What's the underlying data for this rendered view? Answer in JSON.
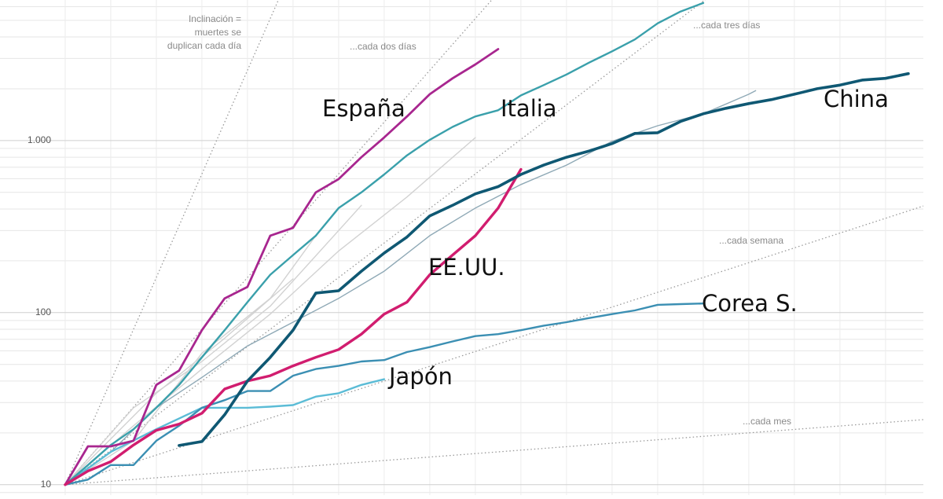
{
  "chart_data": {
    "type": "line",
    "log_y": true,
    "grid": true,
    "xlim": [
      -2.86,
      37.66
    ],
    "ylim": [
      8.7,
      6560
    ],
    "xticks": [
      0,
      2,
      4,
      6,
      8,
      10,
      12,
      14,
      16,
      18,
      20,
      22,
      24,
      26,
      28,
      30,
      32,
      34,
      36
    ],
    "yticks": [
      10,
      100,
      {
        "value": 1000,
        "label": "1.000"
      }
    ],
    "reference_lines": [
      {
        "label": [
          "Inclinación =",
          "muertes se",
          "duplican cada día"
        ],
        "doubling_days": 1
      },
      {
        "label": "...cada dos días",
        "doubling_days": 2
      },
      {
        "label": "...cada tres días",
        "doubling_days": 3
      },
      {
        "label": "...cada semana",
        "doubling_days": 7
      },
      {
        "label": "...cada mes",
        "doubling_days": 30
      }
    ],
    "series": [
      {
        "color": "#d2d2d2",
        "x": [
          0,
          3,
          6,
          9,
          12,
          15,
          18
        ],
        "values": [
          10,
          22,
          47,
          98,
          228,
          470,
          1040
        ]
      },
      {
        "color": "#d2d2d2",
        "x": [
          0,
          3,
          6,
          9,
          13
        ],
        "values": [
          10,
          28,
          52,
          109,
          420
        ]
      },
      {
        "color": "#d2d2d2",
        "x": [
          0,
          3,
          6,
          9,
          11
        ],
        "values": [
          10,
          18,
          58,
          121,
          280
        ]
      },
      {
        "color": "#d2d2d2",
        "x": [
          0,
          4,
          7,
          10
        ],
        "values": [
          10,
          34,
          71,
          157
        ]
      },
      {
        "color": "#8fa9b6",
        "x": [
          0,
          2,
          4,
          6,
          8,
          10,
          12,
          14,
          16,
          18,
          20,
          22,
          24,
          26,
          28,
          30,
          30.3
        ],
        "values": [
          10,
          15.5,
          28,
          42,
          64,
          88,
          121,
          174,
          280,
          405,
          555,
          720,
          990,
          1220,
          1430,
          1860,
          1950
        ]
      },
      {
        "name": "Japón",
        "color": "#5bbcd6",
        "x": [
          0,
          2,
          4,
          6,
          7,
          8,
          9,
          10,
          11,
          12,
          13,
          14
        ],
        "values": [
          10,
          15.5,
          21,
          28,
          28,
          28,
          28.4,
          29,
          32.5,
          34,
          38,
          41
        ]
      },
      {
        "name": "Corea S.",
        "color": "#3b8fb3",
        "x": [
          0,
          1,
          2,
          3,
          4,
          5,
          6,
          7,
          8,
          9,
          10,
          11,
          12,
          13,
          14,
          15,
          16,
          17,
          18,
          19,
          20,
          21,
          22,
          23,
          24,
          25,
          26,
          27,
          28
        ],
        "values": [
          10,
          10.7,
          13,
          13,
          18,
          22,
          28,
          31,
          35,
          35,
          43,
          47,
          49,
          52,
          53,
          59,
          63,
          68,
          73,
          75,
          79,
          84,
          88,
          93,
          98,
          103,
          111,
          112,
          113
        ]
      },
      {
        "name": "Italia",
        "color": "#3aa0ab",
        "x": [
          0,
          1,
          2,
          3,
          4,
          5,
          6,
          7,
          8,
          9,
          10,
          11,
          12,
          13,
          14,
          15,
          16,
          17,
          18,
          19,
          20,
          21,
          22,
          23,
          24,
          25,
          26,
          27,
          28
        ],
        "values": [
          10,
          13,
          17,
          21,
          28,
          38,
          55,
          79,
          115,
          166,
          216,
          280,
          405,
          500,
          635,
          820,
          1010,
          1200,
          1380,
          1500,
          1830,
          2100,
          2420,
          2840,
          3300,
          3870,
          4800,
          5620,
          6300
        ]
      },
      {
        "name": "España",
        "color": "#a8268f",
        "x": [
          0,
          1,
          2,
          3,
          4,
          5,
          6,
          7,
          8,
          9,
          10,
          11,
          12,
          13,
          14,
          15,
          16,
          17,
          18,
          19
        ],
        "values": [
          10,
          16.7,
          16.7,
          18,
          38,
          46,
          79,
          121,
          141,
          280,
          311,
          500,
          597,
          801,
          1043,
          1380,
          1860,
          2300,
          2770,
          3400
        ]
      },
      {
        "name": "EE.UU.",
        "color": "#d11d6f",
        "x": [
          0,
          1,
          2,
          3,
          4,
          5,
          6,
          7,
          8,
          9,
          10,
          11,
          12,
          13,
          14,
          15,
          16,
          17,
          18,
          19,
          20
        ],
        "values": [
          10,
          12,
          13.6,
          17,
          20.7,
          22.5,
          26,
          36,
          40,
          43,
          49,
          55,
          61,
          75,
          98,
          115,
          166,
          216,
          280,
          405,
          680
        ]
      },
      {
        "name": "China",
        "color": "#0f5873",
        "x": [
          5,
          6,
          7,
          8,
          9,
          10,
          11,
          12,
          13,
          14,
          15,
          16,
          17,
          18,
          19,
          20,
          21,
          22,
          23,
          24,
          25,
          26,
          27,
          28,
          29,
          30,
          31,
          32,
          33,
          34,
          35,
          36,
          37
        ],
        "values": [
          16.9,
          17.8,
          25.5,
          40,
          55,
          79,
          130,
          134,
          174,
          222,
          275,
          365,
          420,
          490,
          540,
          635,
          720,
          800,
          870,
          960,
          1100,
          1110,
          1290,
          1430,
          1540,
          1640,
          1730,
          1860,
          2000,
          2100,
          2250,
          2300,
          2450
        ]
      }
    ]
  }
}
